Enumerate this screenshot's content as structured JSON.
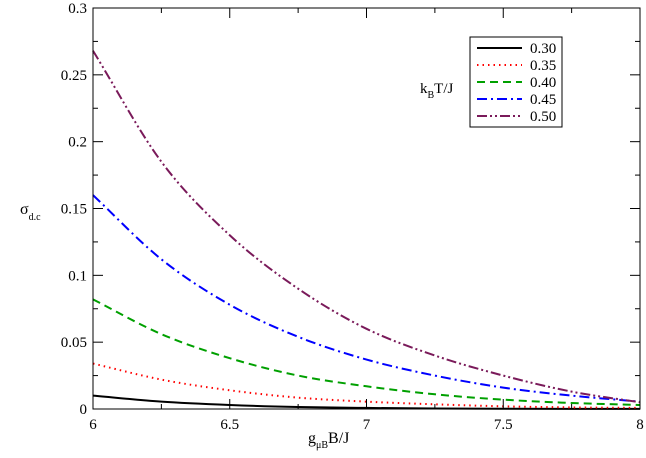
{
  "chart_data": {
    "type": "line",
    "xlabel": {
      "main1": "g",
      "sub1": "μ",
      "sub1b": "B",
      "main2": "B/J"
    },
    "ylabel": {
      "main": "σ",
      "sub": "d.c"
    },
    "xlim": [
      6,
      8
    ],
    "ylim": [
      0,
      0.3
    ],
    "xticks": [
      "6",
      "6.5",
      "7",
      "7.5",
      "8"
    ],
    "yticks": [
      "0",
      "0.05",
      "0.1",
      "0.15",
      "0.2",
      "0.25",
      "0.3"
    ],
    "legend": {
      "title": {
        "main1": "k",
        "sub": "B",
        "main2": "T/J"
      },
      "placement": "top-right"
    },
    "series": [
      {
        "name": "0.30",
        "color": "#000000",
        "dash": "solid",
        "x": [
          6,
          6.25,
          6.5,
          6.75,
          7,
          7.25,
          7.5,
          7.75,
          8
        ],
        "y": [
          0.01,
          0.0055,
          0.003,
          0.0015,
          0.0008,
          0.0004,
          0.0002,
          0.0001,
          5e-05
        ]
      },
      {
        "name": "0.35",
        "color": "#ff0000",
        "dash": "dot",
        "x": [
          6,
          6.25,
          6.5,
          6.75,
          7,
          7.25,
          7.5,
          7.75,
          8
        ],
        "y": [
          0.034,
          0.022,
          0.014,
          0.0085,
          0.0055,
          0.0035,
          0.002,
          0.0012,
          0.0008
        ]
      },
      {
        "name": "0.40",
        "color": "#00a000",
        "dash": "dash",
        "x": [
          6,
          6.25,
          6.5,
          6.75,
          7,
          7.25,
          7.5,
          7.75,
          8
        ],
        "y": [
          0.082,
          0.056,
          0.038,
          0.025,
          0.017,
          0.011,
          0.007,
          0.0045,
          0.003
        ]
      },
      {
        "name": "0.45",
        "color": "#0000ff",
        "dash": "dashdot",
        "x": [
          6,
          6.25,
          6.5,
          6.75,
          7,
          7.25,
          7.5,
          7.75,
          8
        ],
        "y": [
          0.16,
          0.112,
          0.078,
          0.054,
          0.037,
          0.025,
          0.016,
          0.01,
          0.0055
        ]
      },
      {
        "name": "0.50",
        "color": "#7a1a5a",
        "dash": "dashdotdot",
        "x": [
          6,
          6.25,
          6.5,
          6.75,
          7,
          7.25,
          7.5,
          7.75,
          8
        ],
        "y": [
          0.268,
          0.185,
          0.13,
          0.09,
          0.06,
          0.04,
          0.025,
          0.013,
          0.005
        ]
      }
    ]
  }
}
